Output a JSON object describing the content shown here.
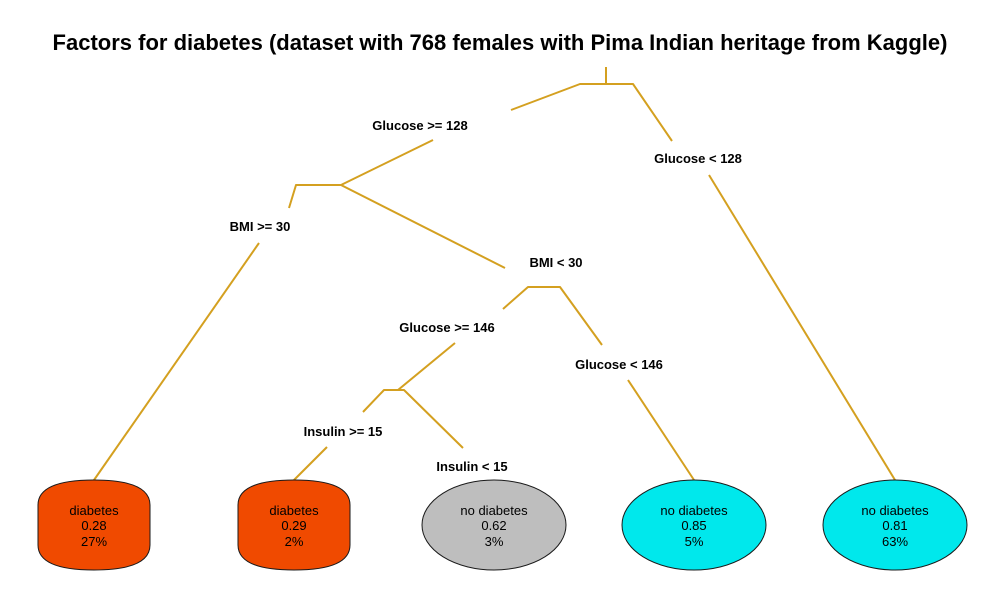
{
  "title": "Factors for diabetes (dataset with 768 females with Pima Indian heritage from Kaggle)",
  "colors": {
    "branch": "#D4A020",
    "diabetes": "#F04A00",
    "no_diabetes_cyan": "#00E8EC",
    "no_diabetes_gray": "#BEBEBE"
  },
  "splits": {
    "root_left": "Glucose >= 128",
    "root_right": "Glucose < 128",
    "bmi_left": "BMI >= 30",
    "bmi_right": "BMI < 30",
    "glucose2_left": "Glucose >= 146",
    "glucose2_right": "Glucose < 146",
    "insulin_left": "Insulin >= 15",
    "insulin_right": "Insulin < 15"
  },
  "leaves": [
    {
      "class": "diabetes",
      "prob": "0.28",
      "pct": "27%",
      "color": "#F04A00"
    },
    {
      "class": "diabetes",
      "prob": "0.29",
      "pct": "2%",
      "color": "#F04A00"
    },
    {
      "class": "no diabetes",
      "prob": "0.62",
      "pct": "3%",
      "color": "#BEBEBE"
    },
    {
      "class": "no diabetes",
      "prob": "0.85",
      "pct": "5%",
      "color": "#00E8EC"
    },
    {
      "class": "no diabetes",
      "prob": "0.81",
      "pct": "63%",
      "color": "#00E8EC"
    }
  ]
}
